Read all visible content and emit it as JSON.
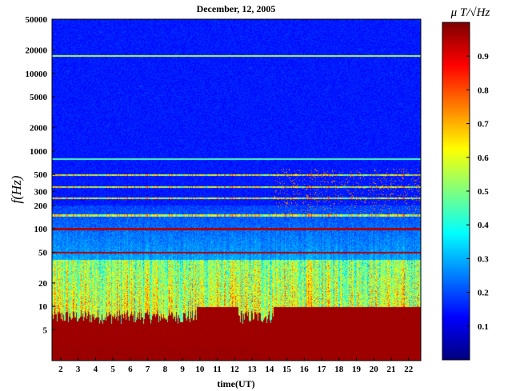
{
  "chart_data": {
    "type": "heatmap",
    "title": "December, 12, 2005",
    "xlabel": "time(UT)",
    "ylabel": "f(Hz)",
    "colorbar_label": "μ T/√Hz",
    "x_ticks": [
      2,
      3,
      4,
      5,
      6,
      7,
      8,
      9,
      10,
      11,
      12,
      13,
      14,
      15,
      16,
      17,
      18,
      19,
      20,
      21,
      22
    ],
    "xlim": [
      1.5,
      22.7
    ],
    "y_scale": "log",
    "y_ticks": [
      5,
      10,
      20,
      50,
      100,
      200,
      300,
      500,
      1000,
      2000,
      5000,
      10000,
      20000,
      50000
    ],
    "ylim": [
      2,
      50000
    ],
    "colorbar_ticks": [
      0.1,
      0.2,
      0.3,
      0.4,
      0.5,
      0.6,
      0.7,
      0.8,
      0.9
    ],
    "clim": [
      0,
      1
    ],
    "colormap": "jet",
    "features": {
      "background_level": 0.12,
      "powerline_lines_hz": [
        50,
        100,
        150,
        250,
        350,
        500
      ],
      "low_freq_saturation": "values near 1.0 below ~10 Hz, intensifying after 14 UT"
    }
  }
}
